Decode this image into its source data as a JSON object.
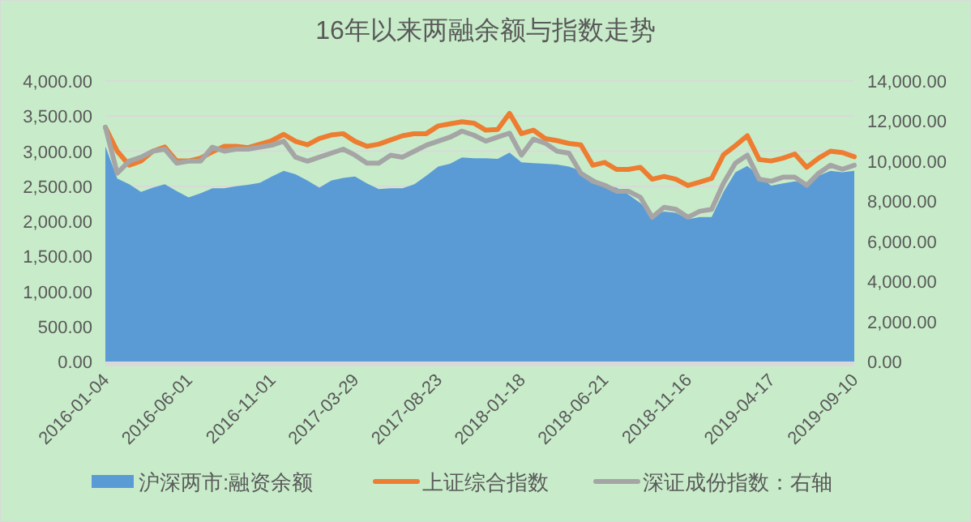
{
  "chart_data": {
    "type": "area",
    "title": "16年以来两融余额与指数走势",
    "categories": [
      "2016-01-04",
      null,
      null,
      null,
      null,
      null,
      null,
      "2016-06-01",
      null,
      null,
      null,
      null,
      null,
      null,
      "2016-11-01",
      null,
      null,
      null,
      null,
      null,
      null,
      "2017-03-29",
      null,
      null,
      null,
      null,
      null,
      null,
      "2017-08-23",
      null,
      null,
      null,
      null,
      null,
      null,
      "2018-01-18",
      null,
      null,
      null,
      null,
      null,
      null,
      "2018-06-21",
      null,
      null,
      null,
      null,
      null,
      null,
      "2018-11-16",
      null,
      null,
      null,
      null,
      null,
      null,
      "2019-04-17",
      null,
      null,
      null,
      null,
      null,
      null,
      "2019-09-10"
    ],
    "series": [
      {
        "name": "沪深两市:融资余额",
        "color": "#5b9bd5",
        "values": [
          3070,
          2610,
          2530,
          2420,
          2480,
          2530,
          2430,
          2340,
          2400,
          2470,
          2470,
          2500,
          2520,
          2550,
          2640,
          2720,
          2670,
          2580,
          2480,
          2580,
          2620,
          2640,
          2540,
          2460,
          2470,
          2470,
          2530,
          2650,
          2780,
          2820,
          2910,
          2900,
          2900,
          2890,
          2980,
          2840,
          2830,
          2820,
          2810,
          2780,
          2720,
          2620,
          2520,
          2480,
          2380,
          2260,
          2090,
          2140,
          2120,
          2030,
          2060,
          2060,
          2420,
          2700,
          2790,
          2650,
          2510,
          2540,
          2570,
          2550,
          2650,
          2720,
          2700,
          2720
        ]
      },
      {
        "name": "上证综合指数",
        "type": "line",
        "color": "#ed7d31",
        "values": [
          3340,
          3000,
          2800,
          2860,
          3000,
          3060,
          2860,
          2860,
          2900,
          2990,
          3070,
          3070,
          3050,
          3100,
          3150,
          3240,
          3140,
          3090,
          3180,
          3230,
          3250,
          3140,
          3070,
          3100,
          3160,
          3220,
          3250,
          3250,
          3360,
          3390,
          3420,
          3400,
          3300,
          3310,
          3540,
          3250,
          3300,
          3180,
          3150,
          3110,
          3090,
          2800,
          2840,
          2740,
          2740,
          2770,
          2600,
          2640,
          2600,
          2510,
          2560,
          2610,
          2950,
          3080,
          3220,
          2880,
          2860,
          2900,
          2960,
          2770,
          2900,
          3000,
          2980,
          2920
        ]
      },
      {
        "name": "深证成份指数：右轴",
        "type": "line",
        "axis": "y2",
        "color": "#a5a5a5",
        "values": [
          11700,
          9400,
          10000,
          10200,
          10500,
          10600,
          9900,
          10000,
          10000,
          10700,
          10500,
          10600,
          10600,
          10700,
          10800,
          11000,
          10200,
          10000,
          10200,
          10400,
          10600,
          10300,
          9900,
          9900,
          10300,
          10200,
          10500,
          10800,
          11000,
          11200,
          11500,
          11300,
          11000,
          11200,
          11400,
          10300,
          11100,
          10900,
          10500,
          10400,
          9400,
          9000,
          8800,
          8500,
          8500,
          8200,
          7200,
          7700,
          7600,
          7200,
          7500,
          7600,
          8900,
          9900,
          10300,
          9100,
          9000,
          9200,
          9200,
          8800,
          9400,
          9800,
          9600,
          9800
        ]
      }
    ],
    "ylim": [
      0,
      4000
    ],
    "yticks": [
      {
        "value": 0,
        "label": "0.00"
      },
      {
        "value": 500,
        "label": "500.00"
      },
      {
        "value": 1000,
        "label": "1,000.00"
      },
      {
        "value": 1500,
        "label": "1,500.00"
      },
      {
        "value": 2000,
        "label": "2,000.00"
      },
      {
        "value": 2500,
        "label": "2,500.00"
      },
      {
        "value": 3000,
        "label": "3,000.00"
      },
      {
        "value": 3500,
        "label": "3,500.00"
      },
      {
        "value": 4000,
        "label": "4,000.00"
      }
    ],
    "y2lim": [
      0,
      14000
    ],
    "y2ticks": [
      {
        "value": 0,
        "label": "0.00"
      },
      {
        "value": 2000,
        "label": "2,000.00"
      },
      {
        "value": 4000,
        "label": "4,000.00"
      },
      {
        "value": 6000,
        "label": "6,000.00"
      },
      {
        "value": 8000,
        "label": "8,000.00"
      },
      {
        "value": 10000,
        "label": "10,000.00"
      },
      {
        "value": 12000,
        "label": "12,000.00"
      },
      {
        "value": 14000,
        "label": "14,000.00"
      }
    ],
    "grid": "y",
    "legend": "bottom"
  }
}
